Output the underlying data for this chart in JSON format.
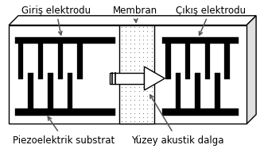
{
  "bg_color": "#ffffff",
  "label_giris": "Giriş elektrodu",
  "label_membran": "Membran",
  "label_cikis": "Çıkış elektrodu",
  "label_piezo": "Piezoelektrik substrat",
  "label_yuzey": "Yüzey akustik dalga",
  "font_size": 8.5,
  "fig_width": 3.32,
  "fig_height": 2.03,
  "dpi": 100
}
